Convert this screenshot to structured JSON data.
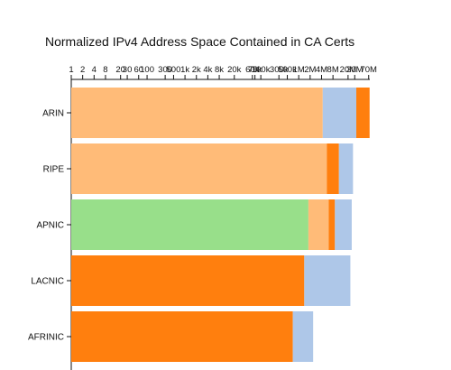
{
  "chart_data": {
    "type": "bar",
    "orientation": "horizontal",
    "stacked": true,
    "title": "Normalized IPv4 Address Space Contained in CA Certs",
    "xscale": "log2",
    "xaxis_position": "top",
    "xlim": [
      1,
      75000000
    ],
    "xticks": [
      {
        "v": 1,
        "label": "1"
      },
      {
        "v": 2,
        "label": "2"
      },
      {
        "v": 4,
        "label": "4"
      },
      {
        "v": 8,
        "label": "8"
      },
      {
        "v": 20,
        "label": "20"
      },
      {
        "v": 30,
        "label": "30"
      },
      {
        "v": 60,
        "label": "60"
      },
      {
        "v": 100,
        "label": "100"
      },
      {
        "v": 300,
        "label": "300"
      },
      {
        "v": 500,
        "label": "500"
      },
      {
        "v": 1000,
        "label": "1k"
      },
      {
        "v": 2000,
        "label": "2k"
      },
      {
        "v": 4000,
        "label": "4k"
      },
      {
        "v": 8000,
        "label": "8k"
      },
      {
        "v": 20000,
        "label": "20k"
      },
      {
        "v": 60000,
        "label": "60k"
      },
      {
        "v": 70000,
        "label": "70k"
      },
      {
        "v": 100000,
        "label": "100k"
      },
      {
        "v": 300000,
        "label": "300k"
      },
      {
        "v": 500000,
        "label": "500k"
      },
      {
        "v": 1000000,
        "label": "1M"
      },
      {
        "v": 2000000,
        "label": "2M"
      },
      {
        "v": 4000000,
        "label": "4M"
      },
      {
        "v": 8000000,
        "label": "8M"
      },
      {
        "v": 20000000,
        "label": "20M"
      },
      {
        "v": 30000000,
        "label": "30M"
      },
      {
        "v": 70000000,
        "label": "70M"
      }
    ],
    "categories": [
      "ARIN",
      "RIPE",
      "APNIC",
      "LACNIC",
      "AFRINIC"
    ],
    "bars": [
      {
        "segments": [
          {
            "end": 4300000,
            "color": "#ffbb78"
          },
          {
            "end": 33000000,
            "color": "#aec7e8"
          },
          {
            "end": 74000000,
            "color": "#ff7f0e"
          }
        ]
      },
      {
        "segments": [
          {
            "end": 5500000,
            "color": "#ffbb78"
          },
          {
            "end": 11500000,
            "color": "#ff7f0e"
          },
          {
            "end": 27000000,
            "color": "#aec7e8"
          }
        ]
      },
      {
        "segments": [
          {
            "end": 1800000,
            "color": "#98df8a"
          },
          {
            "end": 6200000,
            "color": "#ffbb78"
          },
          {
            "end": 9000000,
            "color": "#ff7f0e"
          },
          {
            "end": 25000000,
            "color": "#aec7e8"
          }
        ]
      },
      {
        "segments": [
          {
            "end": 1400000,
            "color": "#ff7f0e"
          },
          {
            "end": 23000000,
            "color": "#aec7e8"
          }
        ]
      },
      {
        "segments": [
          {
            "end": 700000,
            "color": "#ff7f0e"
          },
          {
            "end": 2400000,
            "color": "#aec7e8"
          }
        ]
      }
    ],
    "grid": false,
    "legend": "none"
  }
}
